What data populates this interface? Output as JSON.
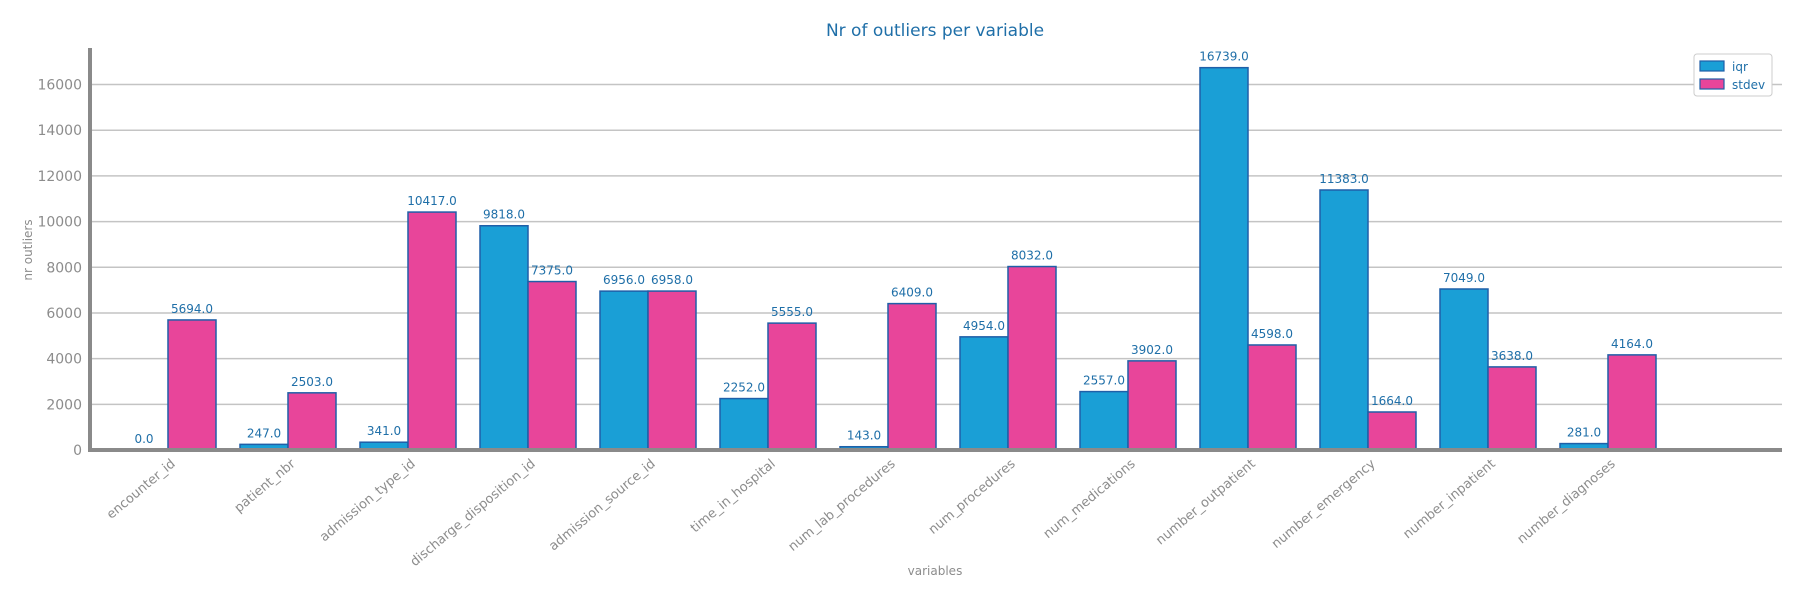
{
  "chart_data": {
    "type": "bar",
    "title": "Nr of outliers per variable",
    "xlabel": "variables",
    "ylabel": "nr outliers",
    "categories": [
      "encounter_id",
      "patient_nbr",
      "admission_type_id",
      "discharge_disposition_id",
      "admission_source_id",
      "time_in_hospital",
      "num_lab_procedures",
      "num_procedures",
      "num_medications",
      "number_outpatient",
      "number_emergency",
      "number_inpatient",
      "number_diagnoses"
    ],
    "series": [
      {
        "name": "iqr",
        "color": "#1a9fd6",
        "values": [
          0.0,
          247.0,
          341.0,
          9818.0,
          6956.0,
          2252.0,
          143.0,
          4954.0,
          2557.0,
          16739.0,
          11383.0,
          7049.0,
          281.0
        ]
      },
      {
        "name": "stdev",
        "color": "#e8459a",
        "values": [
          5694.0,
          2503.0,
          10417.0,
          7375.0,
          6958.0,
          5555.0,
          6409.0,
          8032.0,
          3902.0,
          4598.0,
          1664.0,
          3638.0,
          4164.0
        ]
      }
    ],
    "ylim": [
      0,
      17600
    ],
    "yticks": [
      0,
      2000,
      4000,
      6000,
      8000,
      10000,
      12000,
      14000,
      16000
    ],
    "grid": true,
    "legend": "top-right",
    "colors": {
      "title": "#1f6fa8",
      "label": "#1f6fa8",
      "axis_text": "#8c8c8c",
      "grid": "#c4c4c4",
      "bar_edge": "#1f5fa8"
    }
  }
}
